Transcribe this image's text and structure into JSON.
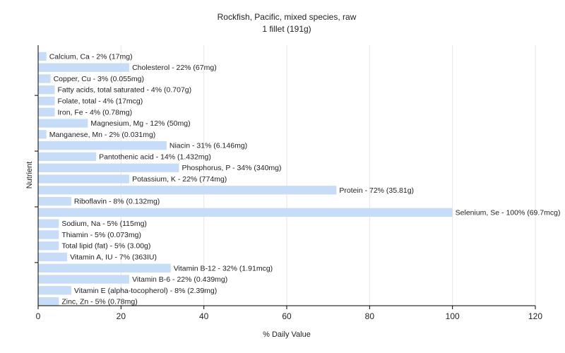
{
  "chart_data": {
    "type": "bar",
    "orientation": "horizontal",
    "title": "Rockfish, Pacific, mixed species, raw",
    "subtitle": "1 fillet (191g)",
    "xlabel": "% Daily Value",
    "ylabel": "Nutrient",
    "xlim": [
      0,
      120
    ],
    "xticks": [
      0,
      20,
      40,
      60,
      80,
      100,
      120
    ],
    "grid": true,
    "bar_color": "#c6dcf7",
    "categories": [
      "Calcium, Ca",
      "Cholesterol",
      "Copper, Cu",
      "Fatty acids, total saturated",
      "Folate, total",
      "Iron, Fe",
      "Magnesium, Mg",
      "Manganese, Mn",
      "Niacin",
      "Pantothenic acid",
      "Phosphorus, P",
      "Potassium, K",
      "Protein",
      "Riboflavin",
      "Selenium, Se",
      "Sodium, Na",
      "Thiamin",
      "Total lipid (fat)",
      "Vitamin A, IU",
      "Vitamin B-12",
      "Vitamin B-6",
      "Vitamin E (alpha-tocopherol)",
      "Zinc, Zn"
    ],
    "values": [
      2,
      22,
      3,
      4,
      4,
      4,
      12,
      2,
      31,
      14,
      34,
      22,
      72,
      8,
      100,
      5,
      5,
      5,
      7,
      32,
      22,
      8,
      5
    ],
    "labels": [
      "Calcium, Ca - 2% (17mg)",
      "Cholesterol - 22% (67mg)",
      "Copper, Cu - 3% (0.055mg)",
      "Fatty acids, total saturated - 4% (0.707g)",
      "Folate, total - 4% (17mcg)",
      "Iron, Fe - 4% (0.78mg)",
      "Magnesium, Mg - 12% (50mg)",
      "Manganese, Mn - 2% (0.031mg)",
      "Niacin - 31% (6.146mg)",
      "Pantothenic acid - 14% (1.432mg)",
      "Phosphorus, P - 34% (340mg)",
      "Potassium, K - 22% (774mg)",
      "Protein - 72% (35.81g)",
      "Riboflavin - 8% (0.132mg)",
      "Selenium, Se - 100% (69.7mcg)",
      "Sodium, Na - 5% (115mg)",
      "Thiamin - 5% (0.073mg)",
      "Total lipid (fat) - 5% (3.00g)",
      "Vitamin A, IU - 7% (363IU)",
      "Vitamin B-12 - 32% (1.91mcg)",
      "Vitamin B-6 - 22% (0.439mg)",
      "Vitamin E (alpha-tocopherol) - 8% (2.39mg)",
      "Zinc, Zn - 5% (0.78mg)"
    ]
  }
}
